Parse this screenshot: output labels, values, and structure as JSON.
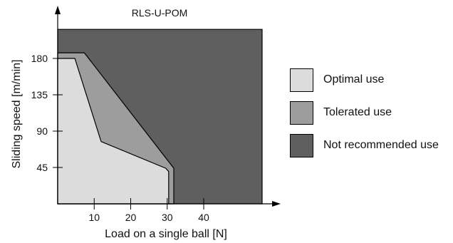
{
  "chart_data": {
    "type": "area",
    "title": "RLS-U-POM",
    "xlabel": "Load on a single ball [N]",
    "ylabel": "Sliding speed [m/min]",
    "xlim": [
      -2.5,
      56
    ],
    "ylim": [
      -5,
      220
    ],
    "x_ticks": [
      10,
      20,
      30,
      40
    ],
    "y_ticks": [
      45,
      90,
      135,
      180
    ],
    "x_tick_labels": [
      "10",
      "20",
      "30",
      "40"
    ],
    "y_tick_labels": [
      "45",
      "90",
      "135",
      "180"
    ],
    "plot_region": {
      "x": [
        0,
        56
      ],
      "y": [
        0,
        216
      ]
    },
    "series": [
      {
        "name": "Not recommended use",
        "color": "#5f5f5f",
        "polygon": [
          [
            0,
            0
          ],
          [
            56,
            0
          ],
          [
            56,
            216
          ],
          [
            0,
            216
          ]
        ]
      },
      {
        "name": "Tolerated use",
        "color": "#9d9d9d",
        "polygon": [
          [
            0,
            0
          ],
          [
            0,
            187
          ],
          [
            7.3,
            187
          ],
          [
            31.8,
            44
          ],
          [
            31.8,
            0
          ]
        ]
      },
      {
        "name": "Optimal use",
        "color": "#dcdcdc",
        "polygon": [
          [
            0,
            0
          ],
          [
            0,
            180
          ],
          [
            4.7,
            180
          ],
          [
            11.9,
            77
          ],
          [
            29.6,
            44
          ],
          [
            30.4,
            40
          ],
          [
            30.4,
            0
          ]
        ]
      }
    ],
    "legend": {
      "position": "right",
      "entries": [
        {
          "label": "Optimal use",
          "color": "#dcdcdc"
        },
        {
          "label": "Tolerated use",
          "color": "#9d9d9d"
        },
        {
          "label": "Not recommended use",
          "color": "#5f5f5f"
        }
      ]
    }
  }
}
